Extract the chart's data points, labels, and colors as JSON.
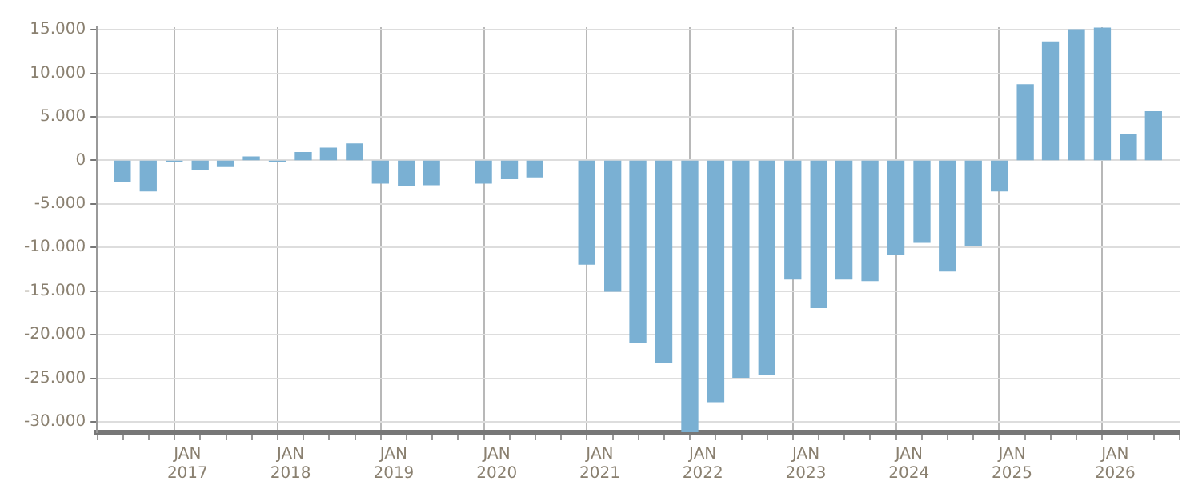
{
  "chart_data": {
    "type": "bar",
    "x": [
      "2016-05-15",
      "2016-08-15",
      "2016-11-15",
      "2017-02-15",
      "2017-05-15",
      "2017-08-15",
      "2017-11-15",
      "2018-02-15",
      "2018-05-15",
      "2018-08-15",
      "2018-11-15",
      "2019-02-15",
      "2019-05-15",
      "2019-11-15",
      "2020-02-15",
      "2020-05-15",
      "2020-11-15",
      "2021-02-15",
      "2021-05-15",
      "2021-08-15",
      "2021-11-15",
      "2022-02-15",
      "2022-05-15",
      "2022-08-15",
      "2022-11-15",
      "2023-02-15",
      "2023-05-15",
      "2023-08-15",
      "2023-11-15",
      "2024-02-15",
      "2024-05-15",
      "2024-08-15",
      "2024-11-15",
      "2025-02-15",
      "2025-05-15",
      "2025-08-15",
      "2025-11-15",
      "2026-02-15",
      "2026-05-15"
    ],
    "values": [
      -2400,
      -3500,
      -100,
      -1000,
      -700,
      400,
      -100,
      900,
      1400,
      1900,
      -2600,
      -2900,
      -2800,
      -2600,
      -2100,
      -1900,
      -11900,
      -15000,
      -20900,
      -23200,
      -31200,
      -27700,
      -24900,
      -24600,
      -13600,
      -16900,
      -13600,
      -13800,
      -10800,
      -9400,
      -12700,
      -9800,
      -3500,
      8700,
      13600,
      15000,
      15200,
      3000,
      5600
    ],
    "color": "#7ab0d3",
    "xlim": [
      "2016-04",
      "2026-07"
    ],
    "xticks": [
      {
        "value": "2017-01",
        "label": "JAN 2017"
      },
      {
        "value": "2018-01",
        "label": "JAN 2018"
      },
      {
        "value": "2019-01",
        "label": "JAN 2019"
      },
      {
        "value": "2020-01",
        "label": "JAN 2020"
      },
      {
        "value": "2021-01",
        "label": "JAN 2021"
      },
      {
        "value": "2022-01",
        "label": "JAN 2022"
      },
      {
        "value": "2023-01",
        "label": "JAN 2023"
      },
      {
        "value": "2024-01",
        "label": "JAN 2024"
      },
      {
        "value": "2025-01",
        "label": "JAN 2025"
      },
      {
        "value": "2026-01",
        "label": "JAN 2026"
      }
    ],
    "ylim": [
      -31200,
      15300
    ],
    "yticks": [
      {
        "value": -30000,
        "label": "-30.000"
      },
      {
        "value": -25000,
        "label": "-25.000"
      },
      {
        "value": -20000,
        "label": "-20.000"
      },
      {
        "value": -15000,
        "label": "-15.000"
      },
      {
        "value": -10000,
        "label": "-10.000"
      },
      {
        "value": -5000,
        "label": "-5.000"
      },
      0,
      {
        "value": 5000,
        "label": "5.000"
      },
      {
        "value": 10000,
        "label": "10.000"
      },
      {
        "value": 15000,
        "label": "15.000"
      }
    ],
    "grid": true
  }
}
